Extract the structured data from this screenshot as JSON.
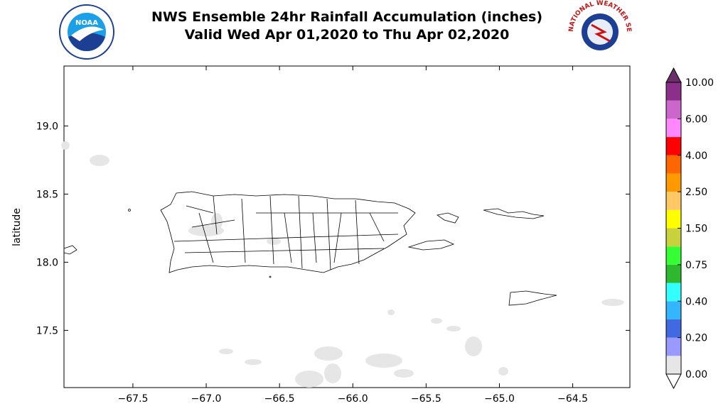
{
  "chart_data": {
    "type": "map",
    "title": "NWS Ensemble 24hr Rainfall Accumulation (inches)",
    "subtitle": "Valid Wed Apr 01,2020 to Thu Apr 02,2020",
    "ylabel": "latitude",
    "logo_left": "NOAA",
    "logo_right": "NATIONAL WEATHER SERVICE",
    "xlim": [
      -67.97,
      -64.11
    ],
    "ylim": [
      17.08,
      19.44
    ],
    "xticks": [
      {
        "value": -67.5,
        "label": "−67.5"
      },
      {
        "value": -67.0,
        "label": "−67.0"
      },
      {
        "value": -66.5,
        "label": "−66.5"
      },
      {
        "value": -66.0,
        "label": "−66.0"
      },
      {
        "value": -65.5,
        "label": "−65.5"
      },
      {
        "value": -65.0,
        "label": "−65.0"
      },
      {
        "value": -64.5,
        "label": "−64.5"
      }
    ],
    "yticks": [
      {
        "value": 17.5,
        "label": "17.5"
      },
      {
        "value": 18.0,
        "label": "18.0"
      },
      {
        "value": 18.5,
        "label": "18.5"
      },
      {
        "value": 19.0,
        "label": "19.0"
      }
    ],
    "colorbar": {
      "ticks": [
        {
          "value": 0,
          "label": "0.00"
        },
        {
          "value": 0.2,
          "label": "0.20"
        },
        {
          "value": 0.4,
          "label": "0.40"
        },
        {
          "value": 0.75,
          "label": "0.75"
        },
        {
          "value": 1.5,
          "label": "1.50"
        },
        {
          "value": 2.5,
          "label": "2.50"
        },
        {
          "value": 4,
          "label": "4.00"
        },
        {
          "value": 6,
          "label": "6.00"
        },
        {
          "value": 10,
          "label": "10.00"
        }
      ],
      "colors": [
        "#e6e6e6",
        "#9999ff",
        "#4169e1",
        "#33b5ff",
        "#33ffff",
        "#2eb82e",
        "#33ff33",
        "#c8d23c",
        "#ffff00",
        "#ffc864",
        "#ff9900",
        "#ff6600",
        "#ff0000",
        "#ff88ff",
        "#cc66cc",
        "#8b2f8b"
      ],
      "over_color": "#6a2e6a"
    }
  }
}
